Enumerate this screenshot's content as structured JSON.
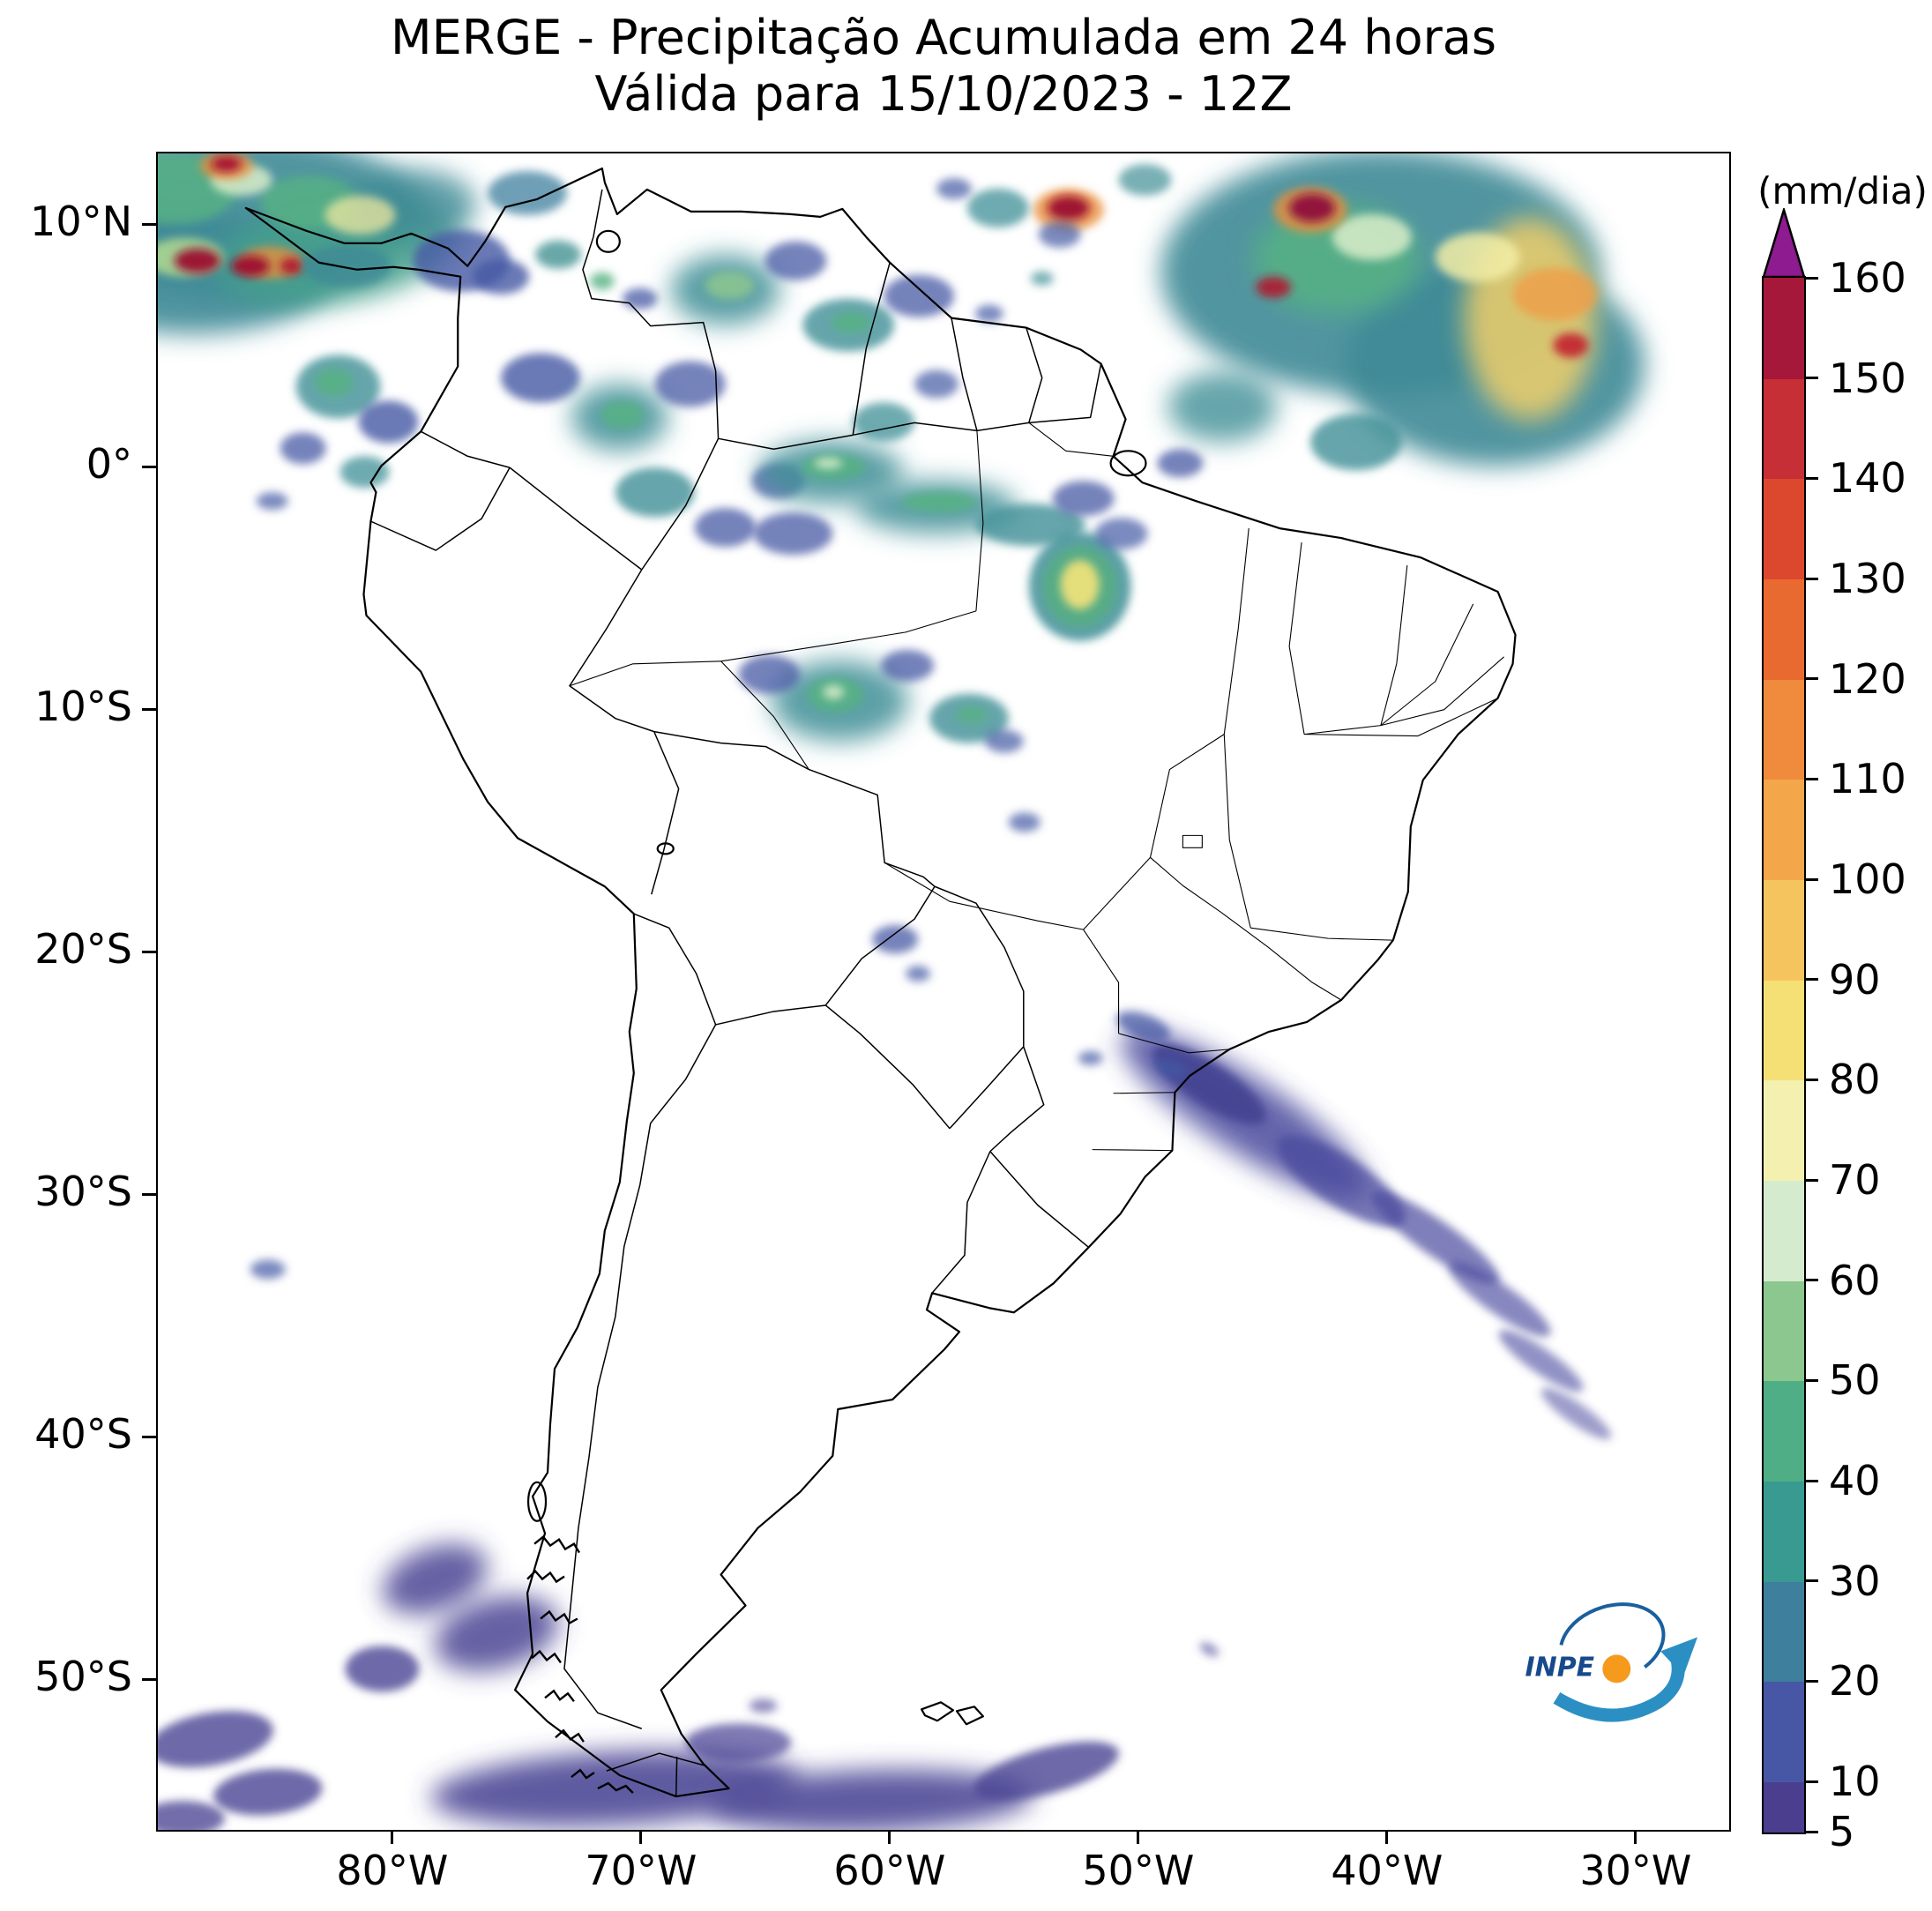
{
  "title": {
    "line1": "MERGE - Precipitação Acumulada em 24 horas",
    "line2": "Válida para 15/10/2023 - 12Z"
  },
  "colorbar": {
    "unit_label": "(mm/dia)",
    "ticks": [
      5,
      10,
      20,
      30,
      40,
      50,
      60,
      70,
      80,
      90,
      100,
      110,
      120,
      130,
      140,
      150,
      160
    ],
    "segments": [
      [
        5,
        10,
        "#4c3e8f"
      ],
      [
        10,
        20,
        "#4757a5"
      ],
      [
        20,
        30,
        "#3f7f9e"
      ],
      [
        30,
        40,
        "#389a90"
      ],
      [
        40,
        50,
        "#4fae85"
      ],
      [
        50,
        60,
        "#8cc78f"
      ],
      [
        60,
        70,
        "#d4ebcd"
      ],
      [
        70,
        80,
        "#f3f0b0"
      ],
      [
        80,
        90,
        "#f5e076"
      ],
      [
        90,
        100,
        "#f6c45f"
      ],
      [
        100,
        110,
        "#f4a64b"
      ],
      [
        110,
        120,
        "#f08a3c"
      ],
      [
        120,
        130,
        "#e96a30"
      ],
      [
        130,
        140,
        "#dc482e"
      ],
      [
        140,
        150,
        "#c62f35"
      ],
      [
        150,
        160,
        "#a5183a"
      ]
    ],
    "overflow_color": "#8e1b8f"
  },
  "axes": {
    "y_ticks": [
      {
        "label": "10°N",
        "value": 10
      },
      {
        "label": "0°",
        "value": 0
      },
      {
        "label": "10°S",
        "value": -10
      },
      {
        "label": "20°S",
        "value": -20
      },
      {
        "label": "30°S",
        "value": -30
      },
      {
        "label": "40°S",
        "value": -40
      },
      {
        "label": "50°S",
        "value": -50
      }
    ],
    "x_ticks": [
      {
        "label": "80°W",
        "value": 80
      },
      {
        "label": "70°W",
        "value": 70
      },
      {
        "label": "60°W",
        "value": 60
      },
      {
        "label": "50°W",
        "value": 50
      },
      {
        "label": "40°W",
        "value": 40
      },
      {
        "label": "30°W",
        "value": 30
      }
    ]
  },
  "logo": {
    "text": "INPE"
  },
  "map": {
    "blobs": [
      [
        90,
        70,
        210,
        95,
        0,
        "#3d8a96",
        0.9,
        2
      ],
      [
        40,
        135,
        160,
        70,
        0,
        "#3d8a96",
        0.9,
        2
      ],
      [
        205,
        110,
        140,
        60,
        -10,
        "#46a08c",
        0.85,
        2
      ],
      [
        20,
        40,
        70,
        40,
        0,
        "#55b183",
        0.8,
        1
      ],
      [
        172,
        55,
        55,
        30,
        0,
        "#55b183",
        0.8,
        1
      ],
      [
        95,
        30,
        35,
        18,
        0,
        "#d9edc9",
        0.85,
        1
      ],
      [
        292,
        58,
        70,
        40,
        0,
        "#3d8a96",
        0.8,
        2
      ],
      [
        345,
        122,
        55,
        35,
        0,
        "#4559a4",
        0.8,
        1
      ],
      [
        420,
        45,
        45,
        25,
        0,
        "#3f7f9e",
        0.75,
        1
      ],
      [
        230,
        70,
        40,
        22,
        0,
        "#efe8a0",
        0.75,
        1
      ],
      [
        30,
        118,
        45,
        22,
        0,
        "#b1d98f",
        0.85,
        1
      ],
      [
        128,
        124,
        36,
        18,
        0,
        "#ea8f3c",
        0.8,
        1
      ],
      [
        45,
        122,
        26,
        14,
        0,
        "#9c1030",
        0.95,
        1
      ],
      [
        105,
        128,
        22,
        12,
        0,
        "#9c1030",
        0.95,
        1
      ],
      [
        152,
        128,
        13,
        9,
        0,
        "#b01430",
        0.95,
        1
      ],
      [
        78,
        14,
        30,
        16,
        0,
        "#ea8f3c",
        0.8,
        1
      ],
      [
        78,
        12,
        17,
        9,
        0,
        "#a51233",
        0.95,
        1
      ],
      [
        215,
        128,
        50,
        24,
        0,
        "#3d8a96",
        0.8,
        1
      ],
      [
        390,
        140,
        32,
        20,
        0,
        "#4559a4",
        0.8,
        1
      ],
      [
        455,
        115,
        26,
        16,
        0,
        "#3f8f8f",
        0.78,
        1
      ],
      [
        505,
        145,
        14,
        10,
        0,
        "#55b183",
        0.8,
        1
      ],
      [
        548,
        165,
        20,
        12,
        0,
        "#4559a4",
        0.75,
        1
      ],
      [
        205,
        265,
        48,
        36,
        0,
        "#3f8f96",
        0.8,
        1
      ],
      [
        200,
        260,
        22,
        16,
        0,
        "#55b183",
        0.85,
        1
      ],
      [
        262,
        305,
        34,
        24,
        0,
        "#4559a4",
        0.8,
        1
      ],
      [
        165,
        335,
        26,
        18,
        0,
        "#4559a4",
        0.75,
        1
      ],
      [
        235,
        362,
        28,
        18,
        0,
        "#3f8f96",
        0.75,
        1
      ],
      [
        130,
        395,
        18,
        10,
        0,
        "#4559a4",
        0.7,
        1
      ],
      [
        435,
        255,
        45,
        28,
        0,
        "#4559a4",
        0.8,
        1
      ],
      [
        525,
        300,
        55,
        38,
        0,
        "#3f8f96",
        0.85,
        2
      ],
      [
        528,
        297,
        24,
        16,
        0,
        "#55b183",
        0.85,
        1
      ],
      [
        605,
        262,
        40,
        26,
        0,
        "#4559a4",
        0.75,
        1
      ],
      [
        645,
        155,
        62,
        40,
        0,
        "#3f8f96",
        0.85,
        2
      ],
      [
        650,
        150,
        28,
        16,
        0,
        "#8cc78f",
        0.85,
        1
      ],
      [
        725,
        122,
        35,
        22,
        0,
        "#4559a4",
        0.75,
        1
      ],
      [
        785,
        195,
        52,
        30,
        0,
        "#3f8f96",
        0.8,
        1
      ],
      [
        788,
        192,
        22,
        12,
        0,
        "#55b183",
        0.85,
        1
      ],
      [
        865,
        162,
        40,
        24,
        0,
        "#4559a4",
        0.75,
        1
      ],
      [
        565,
        385,
        45,
        28,
        0,
        "#3f8f96",
        0.8,
        1
      ],
      [
        645,
        425,
        35,
        22,
        0,
        "#4559a4",
        0.75,
        1
      ],
      [
        705,
        372,
        30,
        20,
        0,
        "#4559a4",
        0.75,
        1
      ],
      [
        825,
        305,
        35,
        22,
        0,
        "#3f8f96",
        0.75,
        1
      ],
      [
        885,
        262,
        25,
        16,
        0,
        "#4559a4",
        0.7,
        1
      ],
      [
        945,
        182,
        16,
        10,
        0,
        "#4559a4",
        0.7,
        1
      ],
      [
        1005,
        142,
        13,
        8,
        0,
        "#3f8f96",
        0.7,
        1
      ],
      [
        1390,
        135,
        250,
        140,
        0,
        "#3d8a96",
        0.9,
        2
      ],
      [
        1520,
        240,
        170,
        115,
        0,
        "#3d8a96",
        0.9,
        2
      ],
      [
        1340,
        120,
        95,
        62,
        0,
        "#55b183",
        0.85,
        2
      ],
      [
        1380,
        95,
        45,
        26,
        0,
        "#d9edc9",
        0.85,
        1
      ],
      [
        1035,
        64,
        40,
        24,
        0,
        "#ea8f3c",
        0.8,
        1
      ],
      [
        1035,
        62,
        24,
        14,
        0,
        "#9c1030",
        0.95,
        1
      ],
      [
        1310,
        64,
        42,
        26,
        0,
        "#ea8f3c",
        0.8,
        1
      ],
      [
        1312,
        62,
        26,
        16,
        0,
        "#8f0f3c",
        0.95,
        1
      ],
      [
        1268,
        152,
        20,
        12,
        0,
        "#b01430",
        0.9,
        1
      ],
      [
        1560,
        188,
        75,
        115,
        0,
        "#f0cf6a",
        0.85,
        2
      ],
      [
        1588,
        160,
        48,
        30,
        0,
        "#eda04a",
        0.85,
        1
      ],
      [
        1606,
        218,
        20,
        14,
        0,
        "#c22531",
        0.92,
        1
      ],
      [
        1500,
        118,
        48,
        28,
        0,
        "#f2eda6",
        0.85,
        1
      ],
      [
        1210,
        288,
        62,
        40,
        0,
        "#3f8f96",
        0.8,
        2
      ],
      [
        1362,
        328,
        52,
        32,
        0,
        "#3f8f96",
        0.8,
        1
      ],
      [
        1162,
        352,
        26,
        16,
        0,
        "#4559a4",
        0.75,
        1
      ],
      [
        955,
        62,
        35,
        22,
        0,
        "#3f8f96",
        0.75,
        1
      ],
      [
        1025,
        92,
        24,
        15,
        0,
        "#4559a4",
        0.7,
        1
      ],
      [
        905,
        40,
        20,
        12,
        0,
        "#4559a4",
        0.7,
        1
      ],
      [
        1122,
        30,
        30,
        18,
        0,
        "#3f8f96",
        0.7,
        1
      ],
      [
        765,
        362,
        82,
        36,
        0,
        "#3f8f96",
        0.85,
        2
      ],
      [
        768,
        356,
        36,
        15,
        0,
        "#55b183",
        0.85,
        1
      ],
      [
        762,
        352,
        16,
        6,
        0,
        "#e2f0cf",
        0.85,
        1
      ],
      [
        885,
        402,
        92,
        30,
        0,
        "#3f8f96",
        0.85,
        2
      ],
      [
        888,
        396,
        42,
        12,
        0,
        "#55b183",
        0.85,
        1
      ],
      [
        992,
        422,
        62,
        24,
        0,
        "#3f8f96",
        0.8,
        1
      ],
      [
        722,
        432,
        45,
        24,
        0,
        "#4559a4",
        0.75,
        1
      ],
      [
        1052,
        392,
        35,
        20,
        0,
        "#4559a4",
        0.75,
        1
      ],
      [
        1048,
        492,
        58,
        62,
        0,
        "#3f8f96",
        0.85,
        1
      ],
      [
        1048,
        492,
        42,
        46,
        0,
        "#57ad82",
        0.88,
        1
      ],
      [
        1048,
        490,
        22,
        28,
        0,
        "#ece07a",
        0.95,
        1
      ],
      [
        1095,
        432,
        30,
        18,
        0,
        "#4559a4",
        0.7,
        1
      ],
      [
        775,
        622,
        78,
        46,
        0,
        "#3f8f96",
        0.85,
        2
      ],
      [
        770,
        615,
        32,
        20,
        0,
        "#55b183",
        0.85,
        1
      ],
      [
        768,
        612,
        12,
        8,
        0,
        "#d9edc9",
        0.85,
        1
      ],
      [
        695,
        592,
        35,
        22,
        0,
        "#4559a4",
        0.75,
        1
      ],
      [
        852,
        582,
        30,
        18,
        0,
        "#4559a4",
        0.75,
        1
      ],
      [
        922,
        642,
        45,
        28,
        0,
        "#3f8f96",
        0.8,
        1
      ],
      [
        925,
        638,
        18,
        10,
        0,
        "#55b183",
        0.8,
        1
      ],
      [
        962,
        668,
        22,
        13,
        0,
        "#4559a4",
        0.7,
        1
      ],
      [
        985,
        760,
        18,
        11,
        0,
        "#4559a4",
        0.7,
        1
      ],
      [
        838,
        893,
        26,
        16,
        0,
        "#4559a4",
        0.75,
        1
      ],
      [
        864,
        932,
        14,
        9,
        0,
        "#4559a4",
        0.7,
        1
      ],
      [
        1235,
        1092,
        165,
        42,
        33,
        "#4a4a9e",
        0.85,
        2
      ],
      [
        1195,
        1058,
        75,
        24,
        33,
        "#3e3e8f",
        0.85,
        1
      ],
      [
        1345,
        1168,
        85,
        28,
        33,
        "#4a4a9e",
        0.75,
        1
      ],
      [
        1120,
        992,
        32,
        14,
        20,
        "#4559a4",
        0.75,
        1
      ],
      [
        1152,
        1040,
        20,
        10,
        20,
        "#4559a4",
        0.7,
        1
      ],
      [
        1060,
        1028,
        14,
        8,
        0,
        "#4559a4",
        0.7,
        1
      ],
      [
        1452,
        1232,
        88,
        20,
        35,
        "#4a4a9e",
        0.7,
        1
      ],
      [
        1525,
        1302,
        70,
        17,
        35,
        "#4a4a9e",
        0.65,
        1
      ],
      [
        1572,
        1372,
        58,
        14,
        35,
        "#4a4a9e",
        0.6,
        1
      ],
      [
        1612,
        1432,
        48,
        12,
        35,
        "#4a4a9e",
        0.55,
        1
      ],
      [
        125,
        1268,
        20,
        11,
        0,
        "#4559a4",
        0.7,
        1
      ],
      [
        315,
        1620,
        62,
        36,
        -20,
        "#4a4594",
        0.85,
        2
      ],
      [
        385,
        1682,
        72,
        40,
        -15,
        "#4a4594",
        0.85,
        2
      ],
      [
        255,
        1722,
        42,
        26,
        0,
        "#4a4594",
        0.8,
        1
      ],
      [
        520,
        1858,
        210,
        42,
        -3,
        "#4a4594",
        0.88,
        2
      ],
      [
        810,
        1872,
        185,
        35,
        -2,
        "#4a4594",
        0.88,
        2
      ],
      [
        1010,
        1838,
        85,
        26,
        -15,
        "#4a4594",
        0.8,
        1
      ],
      [
        660,
        1806,
        60,
        22,
        0,
        "#4a4594",
        0.7,
        1
      ],
      [
        60,
        1802,
        72,
        30,
        -10,
        "#4a4594",
        0.8,
        1
      ],
      [
        125,
        1862,
        62,
        26,
        -5,
        "#4a4594",
        0.8,
        1
      ],
      [
        28,
        1892,
        48,
        20,
        0,
        "#4a4594",
        0.78,
        1
      ],
      [
        1195,
        1700,
        12,
        6,
        30,
        "#4a4594",
        0.6,
        1
      ],
      [
        688,
        1764,
        16,
        8,
        0,
        "#4a4594",
        0.6,
        1
      ]
    ]
  }
}
